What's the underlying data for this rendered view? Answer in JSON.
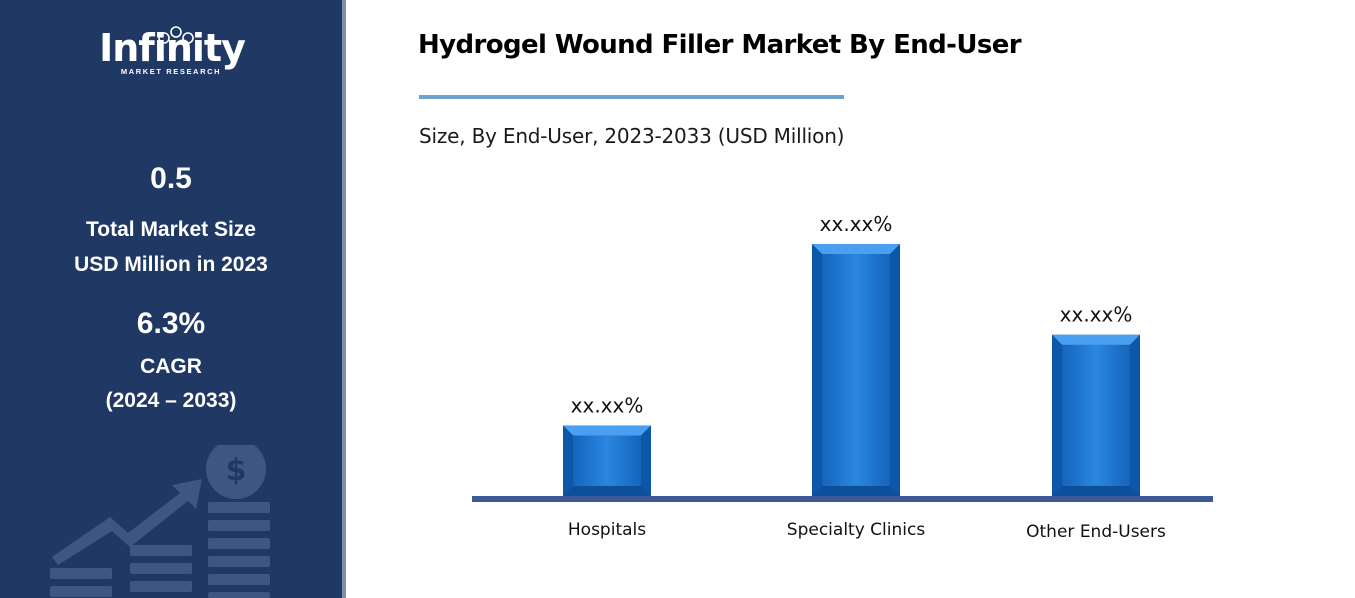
{
  "sidebar": {
    "logo_text": "Infinity",
    "logo_subtext": "MARKET RESEARCH",
    "market_size_value": "0.5",
    "market_size_label_1": "Total Market Size",
    "market_size_label_2": "USD Million in 2023",
    "cagr_value": "6.3%",
    "cagr_label": "CAGR",
    "cagr_period": "(2024 – 2033)",
    "background_color": "#1f3864",
    "decoration_icon": "growth-chart-dollar-icon"
  },
  "chart_data": {
    "type": "bar",
    "title": "Hydrogel Wound Filler Market By End-User",
    "subtitle": "Size, By End-User, 2023-2033 (USD Million)",
    "categories": [
      "Hospitals",
      "Specialty Clinics",
      "Other End-Users"
    ],
    "values": [
      0.28,
      1.0,
      0.64
    ],
    "data_labels": [
      "xx.xx%",
      "xx.xx%",
      "xx.xx%"
    ],
    "ylim": [
      0,
      1
    ],
    "grid": false,
    "legend": "none",
    "bar_color": "#1b6fc6",
    "axis_color": "#3c5a99"
  }
}
